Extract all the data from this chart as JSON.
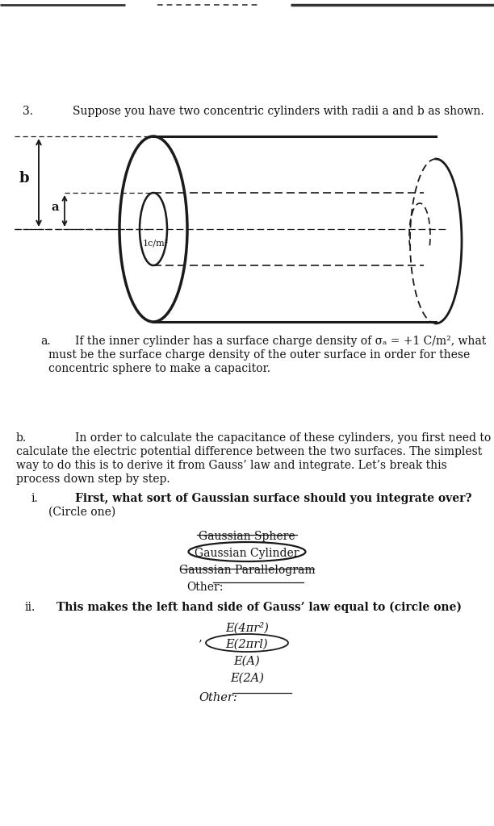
{
  "title_num": "3.",
  "title_text": "Suppose you have two concentric cylinders with radii a and b as shown.",
  "part_a_label": "a.",
  "part_a_text_1": "If the inner cylinder has a surface charge density of σₐ = +1 C/m², what",
  "part_a_text_2": "must be the surface charge density of the outer surface in order for these",
  "part_a_text_3": "concentric sphere to make a capacitor.",
  "part_b_label": "b.",
  "part_b_text_1": "In order to calculate the capacitance of these cylinders, you first need to",
  "part_b_text_2": "calculate the electric potential difference between the two surfaces. The simplest",
  "part_b_text_3": "way to do this is to derive it from Gauss’ law and integrate. Let’s break this",
  "part_b_text_4": "process down step by step.",
  "part_b_i_label": "i.",
  "part_b_i_text_1": "First, what sort of Gaussian surface should you integrate over?",
  "part_b_i_text_2": "(Circle one)",
  "gaussian_sphere": "Gaussian Sphere",
  "gaussian_cylinder": "Gaussian Cylinder",
  "gaussian_parallelogram": "Gaussian Parallelogram",
  "other_i_label": "Other:",
  "part_b_ii_label": "ii.",
  "part_b_ii_text": "This makes the left hand side of Gauss’ law equal to (circle one)",
  "eq1": "E(4πr²)",
  "eq2": "E(2πrl)",
  "eq3": "E(A)",
  "eq4": "E(2A)",
  "other_ii_label": "Other:",
  "bg_color": "#ffffff",
  "text_color": "#111111",
  "line_color": "#1a1a1a",
  "top_bar_color": "#333333",
  "label_a": "a",
  "label_b": "b",
  "inner_label": "1c/m²"
}
